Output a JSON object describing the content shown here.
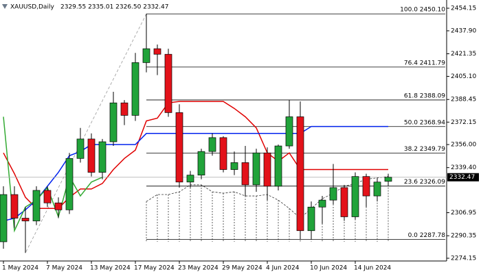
{
  "chart_data": {
    "type": "candlestick",
    "title": "XAUUSD,Daily",
    "ohlc_label": "2329.55 2335.01 2326.50 2332.47",
    "categories": [
      "1 May 2024",
      null,
      null,
      null,
      "7 May 2024",
      null,
      null,
      null,
      "13 May 2024",
      null,
      null,
      null,
      "17 May 2024",
      null,
      null,
      null,
      "23 May 2024",
      null,
      null,
      null,
      "29 May 2024",
      null,
      null,
      null,
      "4 Jun 2024",
      null,
      null,
      null,
      "10 Jun 2024",
      null,
      null,
      null,
      "14 Jun 2024",
      null,
      null,
      null
    ],
    "open": [
      2286,
      2320,
      2303,
      2301,
      2323,
      2314,
      2309,
      2346,
      2360,
      2336,
      2358,
      2386,
      2377,
      2415,
      2425,
      2421,
      2379,
      2329,
      2334,
      2351,
      2361,
      2338,
      2343,
      2327,
      2350,
      2326,
      2355,
      2376,
      2294,
      2311,
      2316,
      2325,
      2304,
      2333,
      2319,
      2329.55
    ],
    "high": [
      2326,
      2326,
      2311,
      2326,
      2326,
      2318,
      2350,
      2368,
      2364,
      2360,
      2394,
      2388,
      2422,
      2450.1,
      2428,
      2425,
      2385,
      2337,
      2353,
      2364,
      2362,
      2351,
      2355,
      2353,
      2354,
      2356,
      2388,
      2387,
      2315,
      2319,
      2342,
      2327,
      2336,
      2335,
      2332,
      2335.01
    ],
    "low": [
      2281,
      2296,
      2278,
      2298,
      2311,
      2303,
      2306,
      2343,
      2333,
      2331,
      2355,
      2370,
      2373,
      2408,
      2406,
      2376,
      2325,
      2325,
      2331,
      2348,
      2336,
      2334,
      2319,
      2322,
      2316,
      2323,
      2353,
      2287.78,
      2288,
      2299,
      2313,
      2301,
      2302,
      2311,
      2315,
      2326.5
    ],
    "close": [
      2320,
      2303,
      2301,
      2323,
      2314,
      2309,
      2346,
      2360,
      2336,
      2358,
      2386,
      2377,
      2415,
      2425,
      2421,
      2379,
      2329,
      2334,
      2351,
      2361,
      2338,
      2343,
      2327,
      2350,
      2326,
      2355,
      2376,
      2294,
      2311,
      2316,
      2325,
      2304,
      2333,
      2319,
      2329,
      2332.47
    ],
    "up_color": "#21a33a",
    "down_color": "#e3121a",
    "lines": [
      {
        "color": "#e00000",
        "dash": false,
        "values": [
          2350,
          2335,
          2318,
          2310,
          2310,
          2310,
          2318,
          2324,
          2324,
          2328,
          2338,
          2346,
          2352,
          2373,
          2375,
          2386,
          2387,
          2387,
          2387,
          2387,
          2387,
          2382,
          2376,
          2368,
          2350,
          2344,
          2350,
          2338,
          2338,
          2338,
          2338,
          2338,
          2338,
          2338,
          2338,
          2338
        ]
      },
      {
        "color": "#0022ee",
        "dash": false,
        "values": [
          2301,
          2303,
          2309,
          2316,
          2326,
          2336,
          2348,
          2351,
          2356,
          2356,
          2356,
          2356,
          2356,
          2364,
          2364,
          2364,
          2364,
          2364,
          2364,
          2364,
          2364,
          2364,
          2364,
          2364,
          2364,
          2364,
          2364,
          2364,
          2369,
          2369,
          2369,
          2369,
          2369,
          2369,
          2369,
          2369
        ]
      },
      {
        "color": "#33aa33",
        "dash": false,
        "values": [
          2376,
          2294,
          2311,
          2316,
          2325,
          2304,
          2333,
          2319,
          2329,
          2332.47,
          null,
          null,
          null,
          null,
          null,
          null,
          null,
          null,
          null,
          null,
          null,
          null,
          null,
          null,
          null,
          null,
          null,
          null,
          null,
          null,
          null,
          null,
          null,
          null,
          null,
          null
        ]
      }
    ],
    "cloud": {
      "color": "#333333",
      "span_a": [
        null,
        null,
        null,
        null,
        null,
        null,
        null,
        null,
        null,
        null,
        null,
        null,
        null,
        2315,
        2320,
        2320,
        2322,
        2327,
        2327,
        2322,
        2321,
        2322,
        2319,
        2319,
        2320,
        2316,
        2310,
        2303,
        2310,
        2317,
        2321,
        2326,
        2328,
        2331,
        2332,
        2333
      ],
      "span_b": [
        null,
        null,
        null,
        null,
        null,
        null,
        null,
        null,
        null,
        null,
        null,
        null,
        null,
        2286,
        2286,
        2286,
        2286,
        2286,
        2286,
        2286,
        2286,
        2286,
        2286,
        2286,
        2286,
        2286,
        2286,
        2286,
        2286,
        2286,
        2286,
        2286,
        2286,
        2286,
        2286,
        2286
      ]
    },
    "fibonacci": [
      {
        "value": 2450.1,
        "label": "100.0 2450.10"
      },
      {
        "value": 2411.79,
        "label": "76.4 2411.79"
      },
      {
        "value": 2388.09,
        "label": "61.8 2388.09"
      },
      {
        "value": 2368.94,
        "label": "50.0 2368.94"
      },
      {
        "value": 2349.79,
        "label": "38.2 2349.79"
      },
      {
        "value": 2326.09,
        "label": "23.6 2326.09"
      },
      {
        "value": 2287.78,
        "label": "0.0 2287.78"
      }
    ],
    "ylim": [
      2274.15,
      2454.15
    ],
    "yticks": [
      2454.15,
      {
        "value": 2437.9,
        "label": "2437.90"
      },
      2421.35,
      {
        "value": 2405.1,
        "label": "2405.10"
      },
      2388.45,
      2372.15,
      {
        "value": 2356.0,
        "label": "2356.00"
      },
      {
        "value": 2339.4,
        "label": "2339.40"
      },
      2306.95,
      2290.35,
      2274.15
    ]
  }
}
